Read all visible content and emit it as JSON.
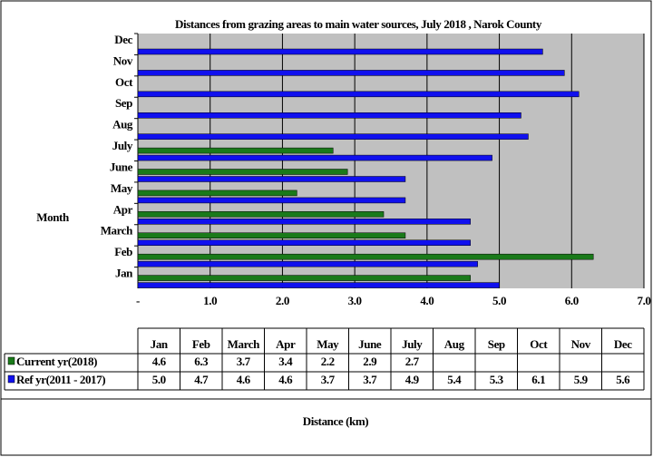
{
  "chart_data": {
    "type": "bar",
    "orientation": "horizontal",
    "title": "Distances from grazing areas to main water sources, July  2018 ,  Narok County",
    "y_label": "Month",
    "x_label": "Distance (km)",
    "categories": [
      "Jan",
      "Feb",
      "March",
      "Apr",
      "May",
      "June",
      "July",
      "Aug",
      "Sep",
      "Oct",
      "Nov",
      "Dec"
    ],
    "series": [
      {
        "name": "Current yr(2018)",
        "color": "#1a7a1a",
        "values": [
          4.6,
          6.3,
          3.7,
          3.4,
          2.2,
          2.9,
          2.7,
          null,
          null,
          null,
          null,
          null
        ],
        "value_labels": [
          "4.6",
          "6.3",
          "3.7",
          "3.4",
          "2.2",
          "2.9",
          "2.7",
          null,
          null,
          null,
          null,
          null
        ]
      },
      {
        "name": "Ref yr(2011 - 2017)",
        "color": "#1010ee",
        "values": [
          5.0,
          4.7,
          4.6,
          4.6,
          3.7,
          3.7,
          4.9,
          5.4,
          5.3,
          6.1,
          5.9,
          5.6
        ],
        "value_labels": [
          "5.0",
          "4.7",
          "4.6",
          "4.6",
          "3.7",
          "3.7",
          "4.9",
          "5.4",
          "5.3",
          "6.1",
          "5.9",
          "5.6"
        ]
      }
    ],
    "xlim": [
      0,
      7
    ],
    "xticks": [
      {
        "value": 0,
        "label": "-"
      },
      {
        "value": 1,
        "label": "1.0"
      },
      {
        "value": 2,
        "label": "2.0"
      },
      {
        "value": 3,
        "label": "3.0"
      },
      {
        "value": 4,
        "label": "4.0"
      },
      {
        "value": 5,
        "label": "5.0"
      },
      {
        "value": 6,
        "label": "6.0"
      },
      {
        "value": 7,
        "label": "7.0"
      }
    ],
    "grid": true
  }
}
